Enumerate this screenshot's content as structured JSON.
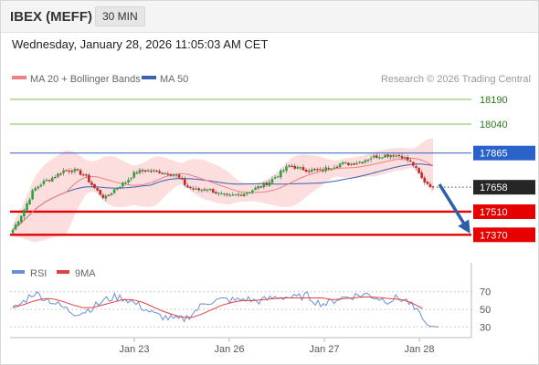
{
  "header": {
    "instrument": "IBEX (MEFF)",
    "timeframe": "30 MIN"
  },
  "datetime": "Wednesday, January 28, 2026 11:05:03 AM CET",
  "legend": {
    "ma20": "MA 20 + Bollinger Bands",
    "ma50": "MA 50",
    "copyright": "Research © 2026 Trading Central"
  },
  "rsi_legend": {
    "rsi": "RSI",
    "ma9": "9MA"
  },
  "colors": {
    "bull": "#22a83a",
    "bear": "#cc2222",
    "ma20": "#f08080",
    "ma50": "#3a5fb5",
    "band": "#fbd3d3",
    "resistance_green": "#7bbf4a",
    "blue_line": "#2a62c9",
    "support_red": "#e60000",
    "arrow": "#2c5fa8",
    "rsi": "#6b8fd6",
    "rsi_ma": "#e04040"
  },
  "chart_data": {
    "type": "candlestick",
    "ylim": [
      17300,
      18250
    ],
    "x_ticks": [
      "Jan 23",
      "Jan 26",
      "Jan 27",
      "Jan 28"
    ],
    "levels": [
      {
        "value": 18190,
        "label": "18190",
        "kind": "resistance"
      },
      {
        "value": 18040,
        "label": "18040",
        "kind": "resistance"
      },
      {
        "value": 17865,
        "label": "17865",
        "kind": "pivot"
      },
      {
        "value": 17658,
        "label": "17658",
        "kind": "last"
      },
      {
        "value": 17510,
        "label": "17510",
        "kind": "support"
      },
      {
        "value": 17370,
        "label": "17370",
        "kind": "support"
      }
    ],
    "last_price": 17658,
    "ohlc_anchors": [
      17400,
      17510,
      17640,
      17690,
      17720,
      17760,
      17760,
      17730,
      17650,
      17590,
      17650,
      17690,
      17750,
      17760,
      17755,
      17745,
      17730,
      17660,
      17640,
      17650,
      17620,
      17600,
      17615,
      17630,
      17660,
      17690,
      17740,
      17790,
      17770,
      17760,
      17760,
      17780,
      17800,
      17800,
      17815,
      17840,
      17850,
      17855,
      17845,
      17800,
      17700,
      17658
    ],
    "rsi": {
      "ylim": [
        22,
        78
      ],
      "ticks": [
        70,
        50,
        30
      ],
      "anchors": [
        50,
        58,
        69,
        64,
        58,
        52,
        46,
        47,
        53,
        60,
        64,
        63,
        57,
        51,
        44,
        41,
        38,
        39,
        48,
        58,
        60,
        61,
        60,
        62,
        59,
        61,
        64,
        64,
        63,
        66,
        58,
        56,
        62,
        64,
        66,
        67,
        63,
        60,
        63,
        59,
        45,
        31,
        30
      ],
      "ma_anchors": [
        52,
        55,
        59,
        62,
        62,
        59,
        55,
        52,
        52,
        55,
        58,
        61,
        61,
        58,
        53,
        48,
        44,
        41,
        41,
        45,
        50,
        55,
        58,
        60,
        60,
        61,
        62,
        63,
        63,
        63,
        63,
        63,
        61,
        62,
        63,
        64,
        64,
        63,
        62,
        61,
        57,
        51
      ]
    }
  }
}
